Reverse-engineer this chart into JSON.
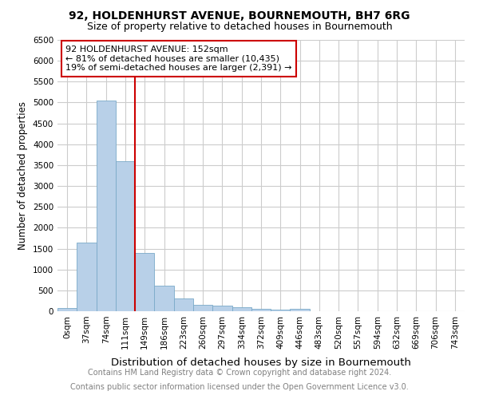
{
  "title1": "92, HOLDENHURST AVENUE, BOURNEMOUTH, BH7 6RG",
  "title2": "Size of property relative to detached houses in Bournemouth",
  "xlabel": "Distribution of detached houses by size in Bournemouth",
  "ylabel": "Number of detached properties",
  "bin_labels": [
    "0sqm",
    "37sqm",
    "74sqm",
    "111sqm",
    "149sqm",
    "186sqm",
    "223sqm",
    "260sqm",
    "297sqm",
    "334sqm",
    "372sqm",
    "409sqm",
    "446sqm",
    "483sqm",
    "520sqm",
    "557sqm",
    "594sqm",
    "632sqm",
    "669sqm",
    "706sqm",
    "743sqm"
  ],
  "bar_values": [
    75,
    1650,
    5050,
    3600,
    1400,
    610,
    300,
    155,
    130,
    100,
    55,
    35,
    60,
    0,
    0,
    0,
    0,
    0,
    0,
    0,
    0
  ],
  "bar_color": "#b8d0e8",
  "bar_edge_color": "#7aaac8",
  "property_line_color": "#cc0000",
  "annotation_text": "92 HOLDENHURST AVENUE: 152sqm\n← 81% of detached houses are smaller (10,435)\n19% of semi-detached houses are larger (2,391) →",
  "annotation_box_color": "#ffffff",
  "annotation_box_edge": "#cc0000",
  "ylim": [
    0,
    6500
  ],
  "yticks": [
    0,
    500,
    1000,
    1500,
    2000,
    2500,
    3000,
    3500,
    4000,
    4500,
    5000,
    5500,
    6000,
    6500
  ],
  "footer1": "Contains HM Land Registry data © Crown copyright and database right 2024.",
  "footer2": "Contains public sector information licensed under the Open Government Licence v3.0.",
  "bg_color": "#ffffff",
  "grid_color": "#cccccc",
  "title1_fontsize": 10,
  "title2_fontsize": 9,
  "xlabel_fontsize": 9.5,
  "ylabel_fontsize": 8.5,
  "tick_fontsize": 7.5,
  "footer_fontsize": 7,
  "ann_fontsize": 8
}
